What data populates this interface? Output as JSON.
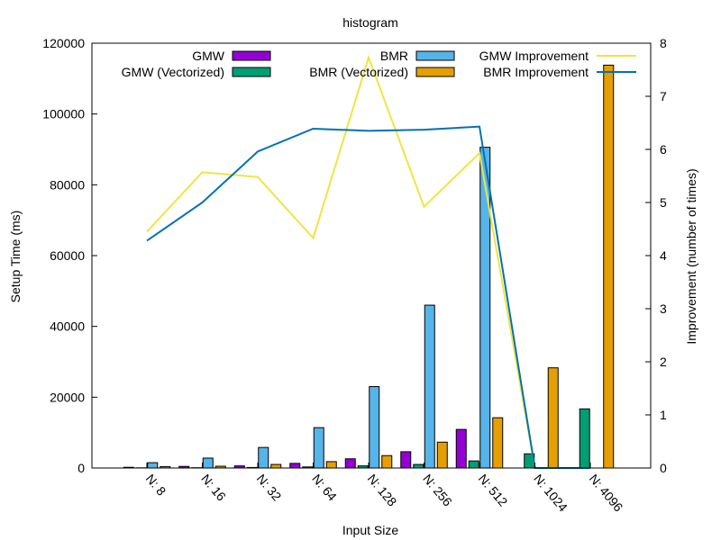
{
  "chart_data": {
    "type": "bar",
    "title": "histogram",
    "xlabel": "Input Size",
    "ylabel": "Setup Time (ms)",
    "y2label": "Improvement (number of times)",
    "categories": [
      "N: 8",
      "N: 16",
      "N: 32",
      "N: 64",
      "N: 128",
      "N: 256",
      "N: 512",
      "N: 1024",
      "N: 4096"
    ],
    "ylim": [
      0,
      120000
    ],
    "y_ticks": [
      0,
      20000,
      40000,
      60000,
      80000,
      100000,
      120000
    ],
    "y_tick_labels": [
      "0",
      "20000",
      "40000",
      "60000",
      "80000",
      "100000",
      "120000"
    ],
    "y2lim": [
      0,
      8
    ],
    "y2_ticks": [
      0,
      1,
      2,
      3,
      4,
      5,
      6,
      7,
      8
    ],
    "y2_tick_labels": [
      "0",
      "1",
      "2",
      "3",
      "4",
      "5",
      "6",
      "7",
      "8"
    ],
    "grid": false,
    "legend_position": "top",
    "series": [
      {
        "name": "GMW",
        "kind": "bar",
        "axis": "y",
        "color": "#9400d3",
        "values": [
          200,
          450,
          600,
          1300,
          2600,
          4600,
          10900,
          0,
          0
        ]
      },
      {
        "name": "GMW (Vectorized)",
        "kind": "bar",
        "axis": "y",
        "color": "#009e73",
        "values": [
          50,
          80,
          150,
          300,
          600,
          1000,
          2000,
          4000,
          16700
        ]
      },
      {
        "name": "BMR",
        "kind": "bar",
        "axis": "y",
        "color": "#56b4e9",
        "values": [
          1500,
          2800,
          5800,
          11400,
          23000,
          46000,
          90600,
          0,
          0
        ]
      },
      {
        "name": "BMR (Vectorized)",
        "kind": "bar",
        "axis": "y",
        "color": "#e69f00",
        "values": [
          400,
          500,
          1000,
          1800,
          3500,
          7300,
          14200,
          28300,
          113800
        ]
      },
      {
        "name": "GMW Improvement",
        "kind": "line",
        "axis": "y2",
        "color": "#f0e442",
        "values": [
          4.45,
          5.57,
          5.48,
          4.33,
          7.73,
          4.92,
          5.93,
          0,
          0
        ]
      },
      {
        "name": "BMR Improvement",
        "kind": "line",
        "axis": "y2",
        "color": "#0072b2",
        "values": [
          4.28,
          5.0,
          5.96,
          6.39,
          6.35,
          6.37,
          6.43,
          0,
          0
        ]
      }
    ]
  }
}
